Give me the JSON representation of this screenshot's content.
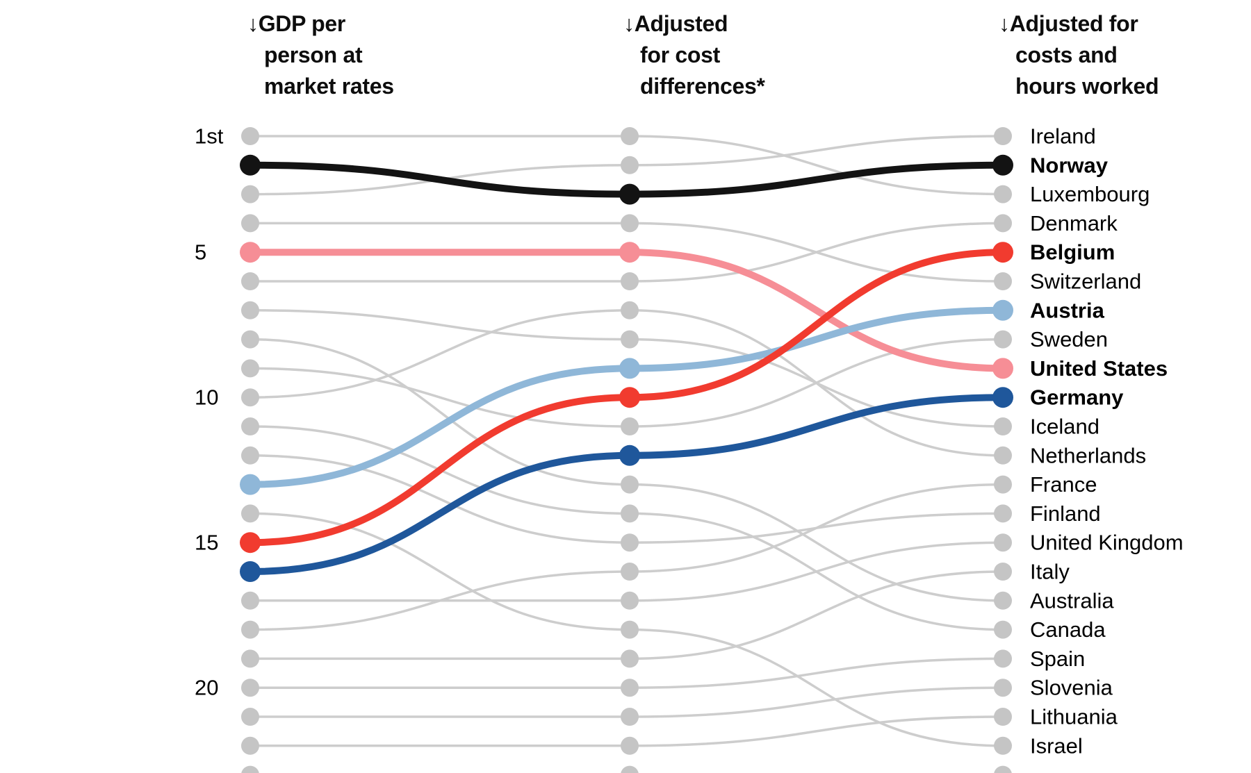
{
  "chart_data": {
    "type": "line",
    "subtype": "bump-ranking-chart",
    "title": "",
    "column_headers": [
      "↓GDP per\nperson at\nmarket rates",
      "↓Adjusted\nfor cost\ndifferences*",
      "↓Adjusted for\ncosts and\nhours worked"
    ],
    "stages": [
      "GDP per person at market rates",
      "Adjusted for cost differences*",
      "Adjusted for costs and hours worked"
    ],
    "rank_axis_labels": [
      {
        "rank": 1,
        "label": "1st"
      },
      {
        "rank": 5,
        "label": "5"
      },
      {
        "rank": 10,
        "label": "10"
      },
      {
        "rank": 15,
        "label": "15"
      },
      {
        "rank": 20,
        "label": "20"
      }
    ],
    "colors": {
      "gray_line": "#CDCDCD",
      "gray_dot": "#C5C5C5",
      "black": "#131313",
      "pink": "#F68E96",
      "red": "#F13B2F",
      "light_blue": "#8FB7D8",
      "dark_blue": "#1F579B",
      "label_text": "#000000"
    },
    "legend_position": "none",
    "grid": false,
    "series": [
      {
        "name": "Luxembourg",
        "ranks": [
          1,
          1,
          3
        ],
        "highlight": false,
        "color_key": "gray_line"
      },
      {
        "name": "Norway",
        "ranks": [
          2,
          3,
          2
        ],
        "highlight": true,
        "color_key": "black"
      },
      {
        "name": "Ireland",
        "ranks": [
          3,
          2,
          1
        ],
        "highlight": false,
        "color_key": "gray_line"
      },
      {
        "name": "Switzerland",
        "ranks": [
          4,
          4,
          6
        ],
        "highlight": false,
        "color_key": "gray_line"
      },
      {
        "name": "United States",
        "ranks": [
          5,
          5,
          9
        ],
        "highlight": true,
        "color_key": "pink"
      },
      {
        "name": "Denmark",
        "ranks": [
          6,
          6,
          4
        ],
        "highlight": false,
        "color_key": "gray_line"
      },
      {
        "name": "Iceland",
        "ranks": [
          7,
          8,
          11
        ],
        "highlight": false,
        "color_key": "gray_line"
      },
      {
        "name": "Australia",
        "ranks": [
          8,
          13,
          17
        ],
        "highlight": false,
        "color_key": "gray_line"
      },
      {
        "name": "Sweden",
        "ranks": [
          9,
          11,
          8
        ],
        "highlight": false,
        "color_key": "gray_line"
      },
      {
        "name": "Netherlands",
        "ranks": [
          10,
          7,
          12
        ],
        "highlight": false,
        "color_key": "gray_line"
      },
      {
        "name": "Canada",
        "ranks": [
          11,
          14,
          18
        ],
        "highlight": false,
        "color_key": "gray_line"
      },
      {
        "name": "Finland",
        "ranks": [
          12,
          15,
          14
        ],
        "highlight": false,
        "color_key": "gray_line"
      },
      {
        "name": "Austria",
        "ranks": [
          13,
          9,
          7
        ],
        "highlight": true,
        "color_key": "light_blue"
      },
      {
        "name": "Israel",
        "ranks": [
          14,
          18,
          22
        ],
        "highlight": false,
        "color_key": "gray_line"
      },
      {
        "name": "Belgium",
        "ranks": [
          15,
          10,
          5
        ],
        "highlight": true,
        "color_key": "red"
      },
      {
        "name": "Germany",
        "ranks": [
          16,
          12,
          10
        ],
        "highlight": true,
        "color_key": "dark_blue"
      },
      {
        "name": "United Kingdom",
        "ranks": [
          17,
          17,
          15
        ],
        "highlight": false,
        "color_key": "gray_line"
      },
      {
        "name": "France",
        "ranks": [
          18,
          16,
          13
        ],
        "highlight": false,
        "color_key": "gray_line"
      },
      {
        "name": "Italy",
        "ranks": [
          19,
          19,
          16
        ],
        "highlight": false,
        "color_key": "gray_line"
      },
      {
        "name": "Spain",
        "ranks": [
          20,
          20,
          19
        ],
        "highlight": false,
        "color_key": "gray_line"
      },
      {
        "name": "Slovenia",
        "ranks": [
          21,
          21,
          20
        ],
        "highlight": false,
        "color_key": "gray_line"
      },
      {
        "name": "Lithuania",
        "ranks": [
          22,
          22,
          21
        ],
        "highlight": false,
        "color_key": "gray_line"
      },
      {
        "name": "",
        "ranks": [
          23,
          23,
          23
        ],
        "highlight": false,
        "color_key": "gray_line"
      }
    ]
  }
}
